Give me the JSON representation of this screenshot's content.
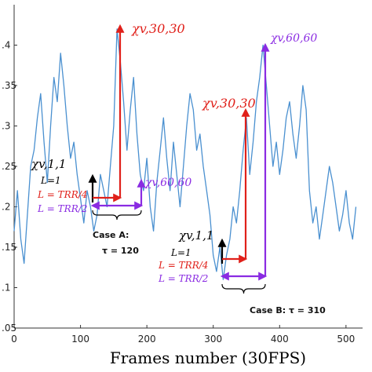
{
  "chart_data": {
    "type": "line",
    "xlabel": "Frames number (30FPS)",
    "ylabel": "",
    "xlim": [
      0,
      525
    ],
    "ylim": [
      0.05,
      0.45
    ],
    "grid": false,
    "x_ticks": [
      "0",
      "100",
      "200",
      "300",
      "400",
      "500"
    ],
    "y_ticks": [
      ".4",
      ".35",
      ".3",
      ".25",
      ".2",
      ".15",
      ".1",
      ".05"
    ],
    "line_color": "#4a90d0",
    "series": [
      {
        "x": [
          0,
          5,
          10,
          15,
          20,
          25,
          30,
          35,
          40,
          45,
          50,
          55,
          60,
          65,
          70,
          75,
          80,
          85,
          90,
          95,
          100,
          105,
          110,
          115,
          120,
          125,
          130,
          135,
          140,
          145,
          150,
          155,
          160,
          165,
          170,
          175,
          180,
          185,
          190,
          195,
          200,
          205,
          210,
          215,
          220,
          225,
          230,
          235,
          240,
          245,
          250,
          255,
          260,
          265,
          270,
          275,
          280,
          285,
          290,
          295,
          300,
          305,
          310,
          315,
          320,
          325,
          330,
          335,
          340,
          345,
          350,
          355,
          360,
          365,
          370,
          375,
          380,
          385,
          390,
          395,
          400,
          405,
          410,
          415,
          420,
          425,
          430,
          435,
          440,
          445,
          450,
          455,
          460,
          465,
          470,
          475,
          480,
          485,
          490,
          495,
          500,
          505,
          510,
          515
        ],
        "values": [
          0.17,
          0.22,
          0.16,
          0.13,
          0.19,
          0.25,
          0.27,
          0.31,
          0.34,
          0.28,
          0.23,
          0.3,
          0.36,
          0.33,
          0.39,
          0.35,
          0.3,
          0.26,
          0.28,
          0.24,
          0.21,
          0.18,
          0.22,
          0.2,
          0.17,
          0.19,
          0.24,
          0.22,
          0.2,
          0.25,
          0.3,
          0.42,
          0.38,
          0.33,
          0.27,
          0.32,
          0.36,
          0.29,
          0.24,
          0.22,
          0.26,
          0.2,
          0.17,
          0.23,
          0.27,
          0.31,
          0.26,
          0.22,
          0.28,
          0.24,
          0.2,
          0.25,
          0.3,
          0.34,
          0.32,
          0.27,
          0.29,
          0.25,
          0.22,
          0.19,
          0.14,
          0.12,
          0.15,
          0.11,
          0.14,
          0.16,
          0.2,
          0.18,
          0.22,
          0.27,
          0.31,
          0.24,
          0.28,
          0.33,
          0.36,
          0.4,
          0.35,
          0.3,
          0.25,
          0.28,
          0.24,
          0.27,
          0.31,
          0.33,
          0.29,
          0.26,
          0.3,
          0.35,
          0.32,
          0.22,
          0.18,
          0.2,
          0.16,
          0.19,
          0.22,
          0.25,
          0.23,
          0.2,
          0.17,
          0.19,
          0.22,
          0.18,
          0.16,
          0.2
        ]
      }
    ],
    "annotations": {
      "case_a": {
        "label_top": "Case A:",
        "tau_label": "τ = 120",
        "chi_top": "χv,30,30",
        "chi_left": "χv,1,1",
        "chi_right": "χv,60,60",
        "l1": "L=1",
        "l4": "L = TRR/4",
        "l2": "L = TRR/2"
      },
      "case_b": {
        "label": "Case B: τ = 310",
        "chi_top": "χv,30,30",
        "chi_left": "χv,1,1",
        "chi_right": "χv,60,60",
        "l1": "L=1",
        "l4": "L = TRR/4",
        "l2": "L = TRR/2"
      }
    },
    "colors": {
      "red": "#e0201a",
      "purple": "#8a2be2",
      "black": "#000000"
    }
  }
}
